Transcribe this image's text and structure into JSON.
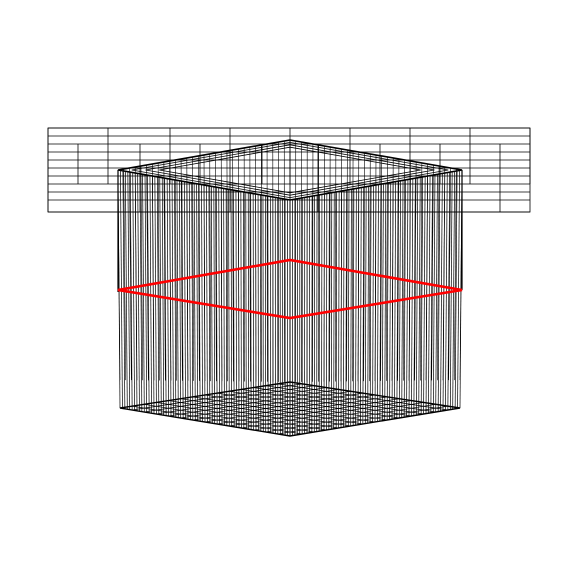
{
  "diagram": {
    "kind": "3d-wireframe-mesh",
    "background_color": "#ffffff",
    "line_color": "#000000",
    "highlight_color": "#ff0000",
    "parts": [
      "top-grid-plane",
      "vertical-column-lines",
      "red-cross-section-loop",
      "bottom-base-grid"
    ]
  }
}
